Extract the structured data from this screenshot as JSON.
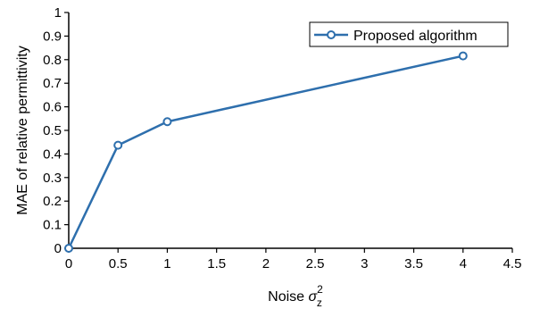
{
  "chart_data": {
    "type": "line",
    "xlabel_main": "Noise ",
    "xlabel_symbol": "σ",
    "xlabel_sup": "2",
    "xlabel_sub": "z",
    "ylabel": "MAE of relative permittivity",
    "xlim": [
      0,
      4.5
    ],
    "ylim": [
      0,
      1
    ],
    "xticks": [
      "0",
      "0.5",
      "1",
      "1.5",
      "2",
      "2.5",
      "3",
      "3.5",
      "4",
      "4.5"
    ],
    "yticks": [
      "0",
      "0.1",
      "0.2",
      "0.3",
      "0.4",
      "0.5",
      "0.6",
      "0.7",
      "0.8",
      "0.9",
      "1"
    ],
    "grid": false,
    "legend_position": "top-right",
    "series": [
      {
        "name": "Proposed algorithm",
        "color": "#2e6fad",
        "marker": "circle",
        "x": [
          0,
          0.5,
          1,
          4
        ],
        "y": [
          0,
          0.437,
          0.537,
          0.816
        ]
      }
    ]
  }
}
